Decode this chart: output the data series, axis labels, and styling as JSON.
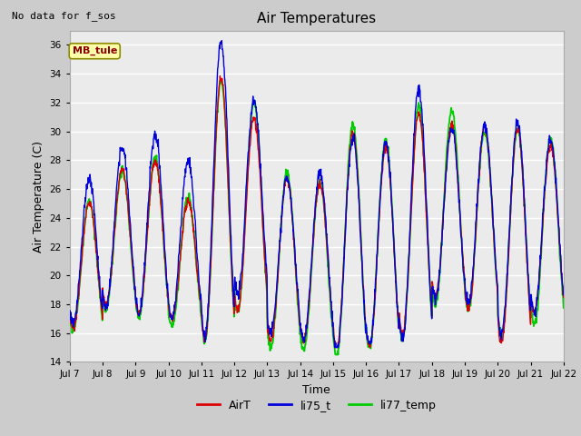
{
  "title": "Air Temperatures",
  "xlabel": "Time",
  "ylabel": "Air Temperature (C)",
  "ylim": [
    14,
    37
  ],
  "yticks": [
    14,
    16,
    18,
    20,
    22,
    24,
    26,
    28,
    30,
    32,
    34,
    36
  ],
  "note": "No data for f_sos",
  "annotation": "MB_tule",
  "line_colors": {
    "AirT": "#dd0000",
    "li75_t": "#0000dd",
    "li77_temp": "#00cc00"
  },
  "line_widths": {
    "AirT": 1.0,
    "li75_t": 1.0,
    "li77_temp": 1.3
  },
  "legend_labels": [
    "AirT",
    "li75_t",
    "li77_temp"
  ],
  "legend_colors": [
    "#dd0000",
    "#0000dd",
    "#00cc00"
  ],
  "plot_bg_color": "#ebebeb",
  "fig_bg_color": "#d0d0d0",
  "xtick_labels": [
    "Jul 7",
    "Jul 8",
    "Jul 9",
    "Jul 10",
    "Jul 11",
    "Jul 12",
    "Jul 13",
    "Jul 14",
    "Jul 15",
    "Jul 16",
    "Jul 17",
    "Jul 18",
    "Jul 19",
    "Jul 20",
    "Jul 21",
    "Jul 22"
  ],
  "n_days": 15,
  "pts_per_day": 96
}
